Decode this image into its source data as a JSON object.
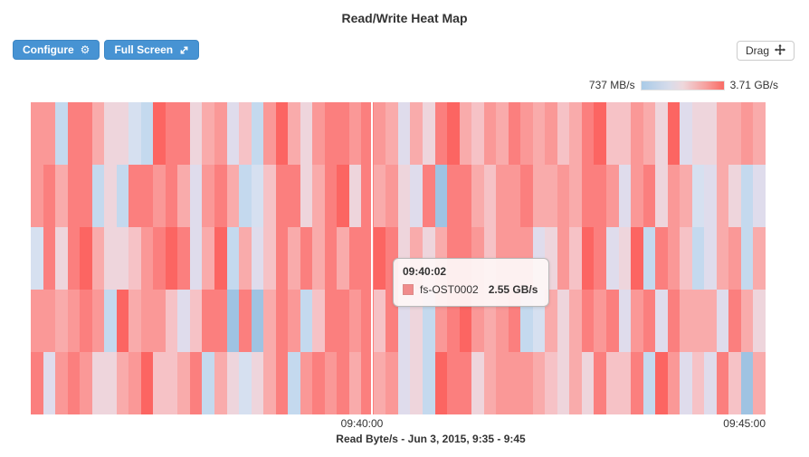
{
  "title": "Read/Write Heat Map",
  "toolbar": {
    "configure_label": "Configure",
    "fullscreen_label": "Full Screen",
    "drag_label": "Drag"
  },
  "legend": {
    "min_label": "737 MB/s",
    "max_label": "3.71 GB/s",
    "gradient": [
      "#a9cbe8",
      "#d9dcea 35%",
      "#eed8dc 50%",
      "#f7a09e 78%",
      "#f96b64"
    ]
  },
  "tooltip": {
    "time": "09:40:02",
    "series": "fs-OST0002",
    "value": "2.55 GB/s",
    "swatch_color": "#f08c8c"
  },
  "x_axis": {
    "tick1": "09:40:00",
    "tick2": "09:45:00"
  },
  "caption": "Read Byte/s - Jun 3, 2015, 9:35 - 9:45",
  "colors": {
    "button_blue": "#4793d3",
    "heat_low_blue": "#9fc3e2",
    "heat_high_red": "#fc6562"
  },
  "chart_data": {
    "type": "heatmap",
    "title": "Read/Write Heat Map",
    "metric_label": "Read Byte/s",
    "date_range": "Jun 3, 2015, 9:35 - 9:45",
    "color_scale": {
      "min": "737 MB/s",
      "max": "3.71 GB/s"
    },
    "x_ticks": [
      "09:40:00",
      "09:45:00"
    ],
    "rows": 5,
    "cols": 60,
    "known_series": [
      "fs-OST0002"
    ],
    "hover_point": {
      "time": "09:40:02",
      "series": "fs-OST0002",
      "value": "2.55 GB/s"
    },
    "palette": [
      "#9fc3e2",
      "#c4d9ee",
      "#d6e0f0",
      "#dfdcec",
      "#eed5dc",
      "#f6c2c6",
      "#f9abab",
      "#fa9897",
      "#fb7f7e",
      "#fc6562"
    ],
    "grid": [
      [
        7,
        7,
        1,
        8,
        8,
        6,
        4,
        4,
        2,
        1,
        9,
        8,
        8,
        4,
        6,
        7,
        3,
        5,
        1,
        7,
        9,
        6,
        4,
        7,
        8,
        8,
        7,
        8,
        7,
        6,
        3,
        6,
        4,
        8,
        9,
        6,
        5,
        7,
        6,
        8,
        7,
        6,
        7,
        5,
        6,
        8,
        9,
        5,
        5,
        7,
        6,
        4,
        9,
        3,
        4,
        4,
        6,
        6,
        7,
        6
      ],
      [
        7,
        8,
        6,
        8,
        8,
        1,
        4,
        1,
        8,
        8,
        7,
        8,
        6,
        3,
        7,
        8,
        6,
        1,
        2,
        5,
        8,
        8,
        4,
        6,
        8,
        9,
        4,
        8,
        6,
        7,
        4,
        3,
        8,
        0,
        8,
        8,
        6,
        5,
        7,
        7,
        8,
        6,
        6,
        7,
        6,
        8,
        8,
        7,
        3,
        7,
        8,
        4,
        7,
        6,
        2,
        3,
        6,
        4,
        1,
        3
      ],
      [
        2,
        8,
        4,
        8,
        9,
        6,
        4,
        4,
        5,
        7,
        8,
        9,
        8,
        3,
        6,
        9,
        1,
        6,
        3,
        5,
        8,
        6,
        8,
        6,
        8,
        6,
        8,
        8,
        9,
        8,
        4,
        6,
        4,
        6,
        8,
        8,
        7,
        5,
        7,
        7,
        7,
        3,
        4,
        7,
        5,
        9,
        8,
        3,
        4,
        9,
        1,
        8,
        7,
        5,
        1,
        3,
        6,
        7,
        1,
        6
      ],
      [
        7,
        7,
        6,
        7,
        8,
        7,
        1,
        9,
        6,
        7,
        7,
        5,
        3,
        5,
        8,
        8,
        0,
        8,
        0,
        6,
        8,
        7,
        1,
        5,
        8,
        8,
        7,
        8,
        5,
        8,
        3,
        4,
        1,
        7,
        8,
        9,
        7,
        6,
        7,
        8,
        1,
        2,
        6,
        4,
        6,
        8,
        7,
        8,
        3,
        7,
        8,
        3,
        8,
        6,
        6,
        6,
        3,
        8,
        6,
        4
      ],
      [
        8,
        3,
        7,
        8,
        7,
        4,
        4,
        6,
        7,
        9,
        5,
        5,
        6,
        8,
        1,
        6,
        4,
        2,
        4,
        6,
        8,
        1,
        7,
        8,
        7,
        8,
        6,
        8,
        6,
        7,
        3,
        4,
        1,
        9,
        8,
        8,
        4,
        6,
        7,
        7,
        7,
        6,
        5,
        4,
        6,
        4,
        8,
        5,
        5,
        8,
        1,
        9,
        7,
        3,
        5,
        3,
        8,
        5,
        0,
        6
      ]
    ]
  }
}
